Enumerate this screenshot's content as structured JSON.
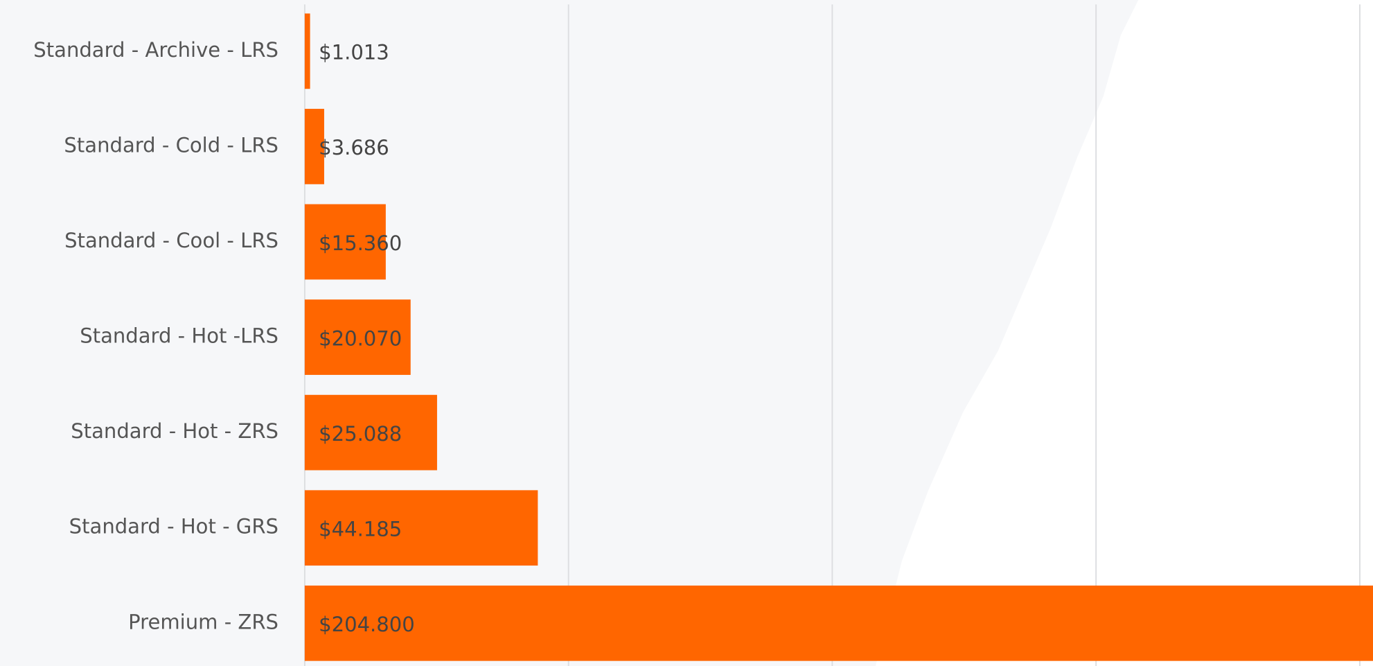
{
  "chart_data": {
    "type": "bar",
    "orientation": "horizontal",
    "color": "#ff6600",
    "categories": [
      "Standard - Archive - LRS",
      "Standard - Cold - LRS",
      "Standard - Cool - LRS",
      "Standard - Hot -LRS",
      "Standard - Hot - ZRS",
      "Standard - Hot - GRS",
      "Premium - ZRS"
    ],
    "values": [
      1.013,
      3.686,
      15.36,
      20.07,
      25.088,
      44.185,
      204.8
    ],
    "value_labels": [
      "$1.013",
      "$3.686",
      "$15.360",
      "$20.070",
      "$25.088",
      "$44.185",
      "$204.800"
    ],
    "xlim": [
      0,
      202.5
    ],
    "xticks": [
      0,
      50,
      100,
      150,
      200
    ],
    "grid": true
  }
}
